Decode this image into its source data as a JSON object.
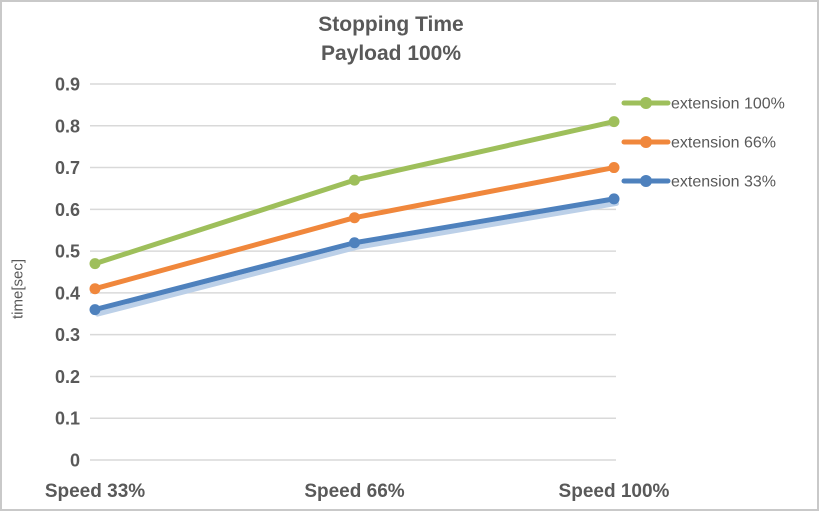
{
  "chart_data": {
    "type": "line",
    "title": "Stopping Time",
    "subtitle": "Payload 100%",
    "ylabel": "time[sec]",
    "categories": [
      "Speed 33%",
      "Speed 66%",
      "Speed 100%"
    ],
    "series": [
      {
        "name": "extension 100%",
        "color": "#9EBF5B",
        "values": [
          0.47,
          0.67,
          0.81
        ]
      },
      {
        "name": "extension 66%",
        "color": "#F0873C",
        "values": [
          0.41,
          0.58,
          0.7
        ]
      },
      {
        "name": "extension 33%",
        "color": "#4E81BD",
        "shadow": "#BCD0E8",
        "values": [
          0.36,
          0.52,
          0.625
        ]
      }
    ],
    "ylim": [
      0,
      0.9
    ],
    "yticks": [
      "0.9",
      "0.8",
      "0.7",
      "0.6",
      "0.5",
      "0.4",
      "0.3",
      "0.2",
      "0.1",
      "0"
    ],
    "grid": true,
    "legend_position": "right",
    "colors": {
      "grid": "#D9D9D9",
      "text": "#595959",
      "border": "#C9C9C9",
      "background": "#FFFFFF"
    }
  }
}
